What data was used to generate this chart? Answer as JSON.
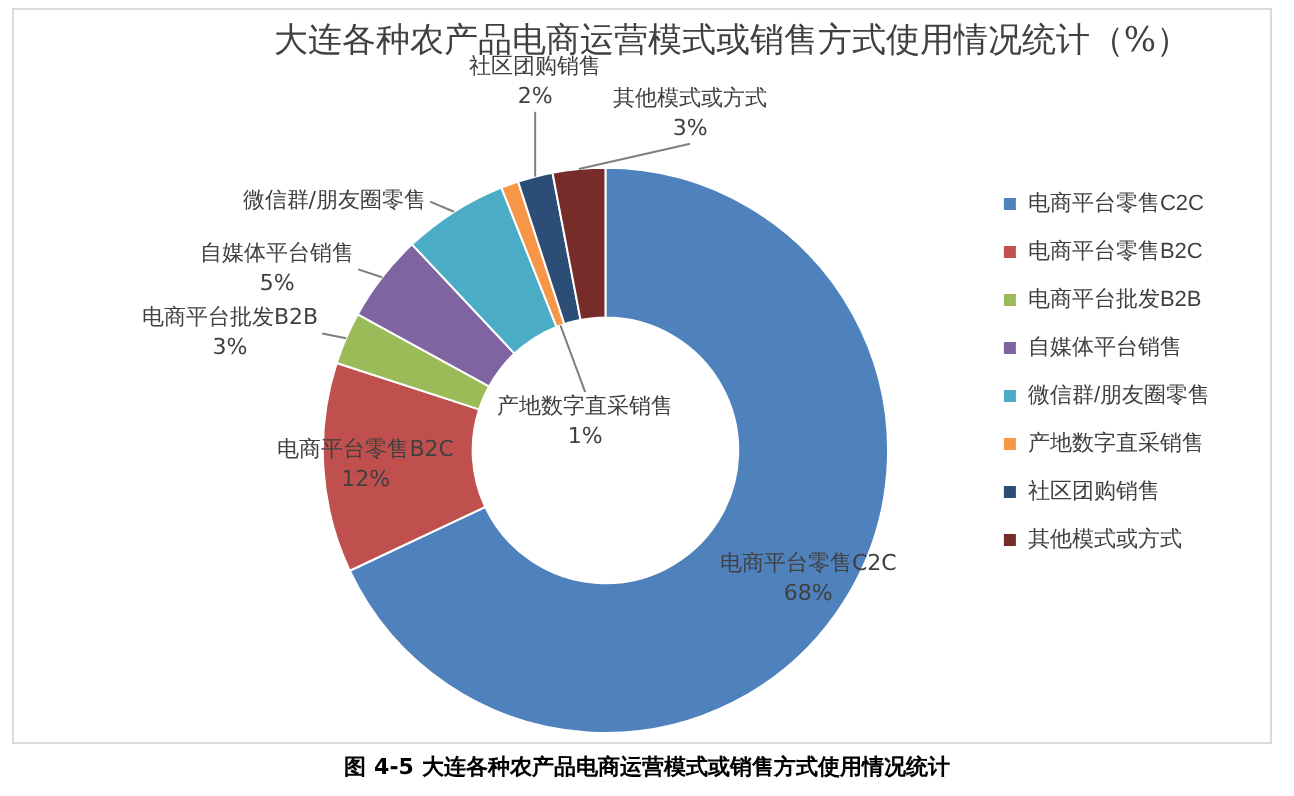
{
  "chart_data": {
    "type": "donut",
    "title": "大连各种农产品电商运营模式或销售方式使用情况统计（%）",
    "categories": [
      "电商平台零售C2C",
      "电商平台零售B2C",
      "电商平台批发B2B",
      "自媒体平台销售",
      "微信群/朋友圈零售",
      "产地数字直采销售",
      "社区团购销售",
      "其他模式或方式"
    ],
    "values": [
      68,
      12,
      3,
      5,
      6,
      1,
      2,
      3
    ],
    "value_labels": [
      "68%",
      "12%",
      "3%",
      "5%",
      null,
      "1%",
      "2%",
      "3%"
    ],
    "colors": [
      "#4f81bd",
      "#c0504d",
      "#9bbb59",
      "#8064a2",
      "#4bacc6",
      "#f79646",
      "#2c4d75",
      "#772c2a"
    ],
    "legend": "right",
    "annotations": [
      "图 4-5 大连各种农产品电商运营模式或销售方式使用情况统计"
    ]
  }
}
